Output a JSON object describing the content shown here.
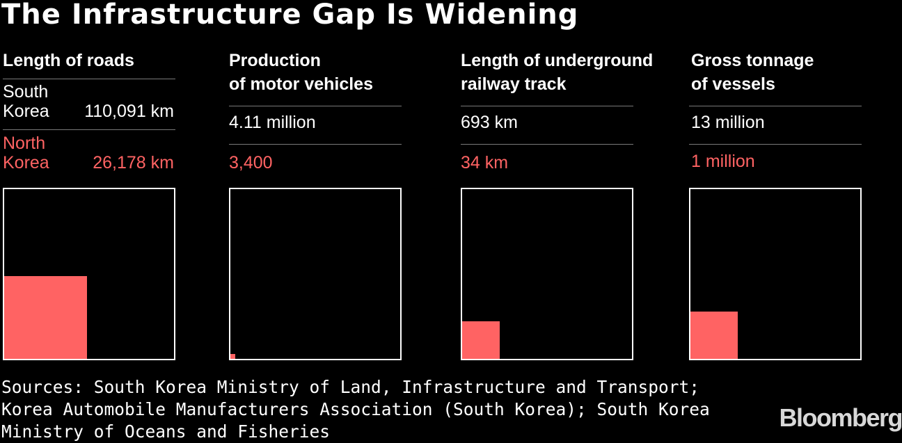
{
  "header": {
    "title": "The Infrastructure Gap Is Widening"
  },
  "chart_data": [
    {
      "type": "area",
      "title": "Length of roads",
      "series": [
        {
          "name": "South Korea",
          "value": 110091,
          "label": "110,091 km"
        },
        {
          "name": "North Korea",
          "value": 26178,
          "label": "26,178 km"
        }
      ]
    },
    {
      "type": "area",
      "title": "Production of motor vehicles",
      "title_lines": [
        "Production",
        "of motor vehicles"
      ],
      "series": [
        {
          "name": "South Korea",
          "value": 4110000,
          "label": "4.11 million"
        },
        {
          "name": "North Korea",
          "value": 3400,
          "label": "3,400"
        }
      ]
    },
    {
      "type": "area",
      "title": "Length of underground railway track",
      "title_lines": [
        "Length of underground",
        "railway track"
      ],
      "series": [
        {
          "name": "South Korea",
          "value": 693,
          "label": "693 km"
        },
        {
          "name": "North Korea",
          "value": 34,
          "label": "34 km"
        }
      ]
    },
    {
      "type": "area",
      "title": "Gross tonnage of vessels",
      "title_lines": [
        "Gross tonnage",
        "of vessels"
      ],
      "series": [
        {
          "name": "South Korea",
          "value": 13000000,
          "label": "13 million"
        },
        {
          "name": "North Korea",
          "value": 1000000,
          "label": "1 million"
        }
      ]
    }
  ],
  "labels": {
    "south_korea": [
      "South",
      "Korea"
    ],
    "north_korea": [
      "North",
      "Korea"
    ]
  },
  "footer": {
    "sources": "Sources: South Korea Ministry of Land, Infrastructure and Transport; Korea Automobile Manufacturers Association (South Korea); South Korea Ministry of Oceans and Fisheries",
    "brand": "Bloomberg"
  },
  "colors": {
    "south_korea": "#ffffff",
    "north_korea": "#ff6363",
    "background": "#000000"
  }
}
